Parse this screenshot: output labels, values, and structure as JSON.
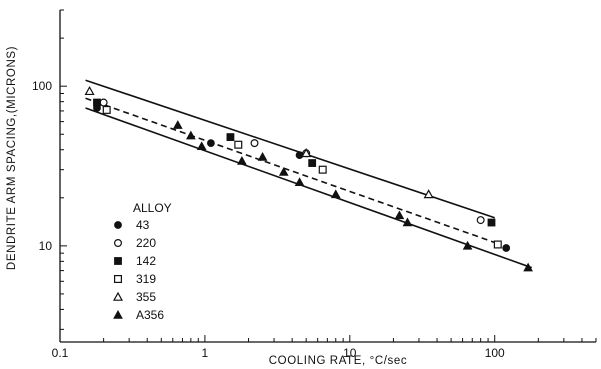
{
  "chart_data": {
    "type": "scatter",
    "xlabel": "COOLING RATE, °C/sec",
    "ylabel": "DENDRITE ARM SPACING,(MICRONS)",
    "xscale": "log",
    "yscale": "log",
    "xlim": [
      0.1,
      500
    ],
    "ylim": [
      2.5,
      300
    ],
    "x_ticks": [
      0.1,
      1,
      10,
      100
    ],
    "x_tick_labels": [
      "0.1",
      "1",
      "10",
      "100"
    ],
    "y_ticks": [
      10,
      100
    ],
    "y_tick_labels": [
      "10",
      "100"
    ],
    "grid": false,
    "legend_title": "ALLOY",
    "legend_position": "lower-left",
    "series": [
      {
        "name": "43",
        "marker": "filled-circle",
        "points": [
          [
            0.18,
            73
          ],
          [
            1.1,
            44
          ],
          [
            4.5,
            37
          ],
          [
            120,
            9.7
          ]
        ]
      },
      {
        "name": "220",
        "marker": "open-circle",
        "points": [
          [
            0.2,
            79
          ],
          [
            2.2,
            44
          ],
          [
            5,
            38
          ],
          [
            80,
            14.5
          ]
        ]
      },
      {
        "name": "142",
        "marker": "filled-square",
        "points": [
          [
            0.18,
            79
          ],
          [
            1.5,
            48
          ],
          [
            5.5,
            33
          ],
          [
            95,
            14
          ]
        ]
      },
      {
        "name": "319",
        "marker": "open-square",
        "points": [
          [
            0.21,
            71
          ],
          [
            1.7,
            43
          ],
          [
            6.5,
            30
          ],
          [
            105,
            10.2
          ]
        ]
      },
      {
        "name": "355",
        "marker": "open-triangle",
        "points": [
          [
            0.16,
            93
          ],
          [
            5,
            38
          ],
          [
            35,
            21
          ]
        ]
      },
      {
        "name": "A356",
        "marker": "filled-triangle",
        "points": [
          [
            0.65,
            57
          ],
          [
            0.8,
            49
          ],
          [
            0.95,
            42
          ],
          [
            1.8,
            34
          ],
          [
            2.5,
            36
          ],
          [
            3.5,
            29
          ],
          [
            4.5,
            25
          ],
          [
            8,
            21
          ],
          [
            22,
            15.5
          ],
          [
            25,
            14
          ],
          [
            65,
            10
          ],
          [
            170,
            7.3
          ]
        ]
      }
    ],
    "fit_lines": [
      {
        "style": "solid",
        "points": [
          [
            0.15,
            109
          ],
          [
            100,
            15
          ]
        ]
      },
      {
        "style": "dashed",
        "points": [
          [
            0.15,
            84
          ],
          [
            100,
            10.5
          ]
        ]
      },
      {
        "style": "solid",
        "points": [
          [
            0.15,
            73
          ],
          [
            180,
            7.3
          ]
        ]
      }
    ]
  }
}
